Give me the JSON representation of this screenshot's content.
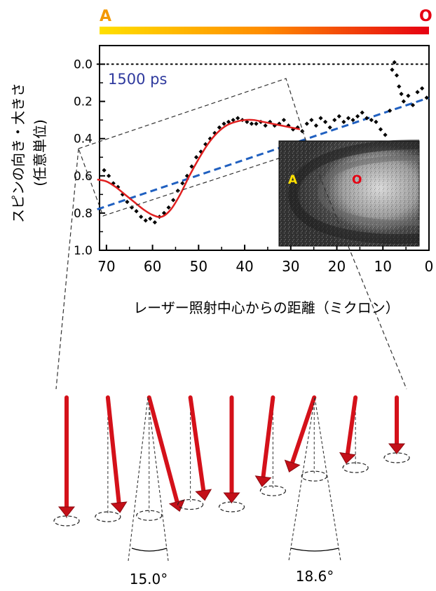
{
  "chart_data": {
    "type": "scatter",
    "title": "",
    "annotation": "1500 ps",
    "xlabel": "レーザー照射中心からの距離（ミクロン）",
    "ylabel": "スピンの向き・大きさ\n(任意単位)",
    "xlim": [
      71.5,
      0
    ],
    "ylim": [
      1.0,
      -0.1
    ],
    "x_ticks": [
      "70",
      "60",
      "50",
      "40",
      "30",
      "20",
      "10",
      "0"
    ],
    "y_ticks": [
      "0.0",
      "0.2",
      "0.4",
      "0.6",
      "0.8",
      "1.0"
    ],
    "gradient_bar": {
      "left_label": "A",
      "right_label": "O",
      "colors": [
        "#ffe000",
        "#ff8c00",
        "#e60012"
      ]
    },
    "inset": {
      "left_label": "A",
      "right_label": "O"
    },
    "series": [
      {
        "style": "points",
        "color": "#000000",
        "x": [
          70.5,
          69.5,
          68.5,
          67.5,
          66.5,
          65.5,
          64.5,
          63.5,
          62.5,
          61.5,
          60.5,
          59.5,
          58.5,
          57.5,
          56.5,
          55.5,
          54.5,
          53.5,
          52.5,
          51.5,
          50.5,
          49.5,
          48.5,
          47.5,
          46.5,
          45.5,
          44.5,
          43.5,
          42.5,
          41.5,
          40.5,
          39.5,
          38.5,
          37.5,
          36.5,
          35.5,
          34.5,
          33.5,
          32.5,
          31.5,
          30.5,
          29.5,
          28.5,
          27.5,
          26.5,
          25.5,
          24.5,
          23.5,
          22.5,
          21.5,
          20.5,
          19.5,
          18.5,
          17.5,
          16.5,
          15.5,
          14.5,
          13.5,
          12.5,
          11.5,
          10.5,
          9.5,
          8.5,
          8.0,
          7.5,
          7.0,
          6.5,
          6.0,
          5.5,
          4.5,
          3.5,
          2.5,
          1.5,
          0.5
        ],
        "y": [
          0.57,
          0.6,
          0.64,
          0.66,
          0.7,
          0.74,
          0.77,
          0.79,
          0.82,
          0.84,
          0.83,
          0.85,
          0.82,
          0.8,
          0.77,
          0.73,
          0.68,
          0.64,
          0.6,
          0.55,
          0.5,
          0.47,
          0.43,
          0.4,
          0.37,
          0.34,
          0.32,
          0.31,
          0.3,
          0.29,
          0.3,
          0.31,
          0.32,
          0.32,
          0.31,
          0.33,
          0.31,
          0.33,
          0.32,
          0.3,
          0.33,
          0.35,
          0.34,
          0.36,
          0.32,
          0.3,
          0.33,
          0.29,
          0.31,
          0.34,
          0.3,
          0.28,
          0.31,
          0.29,
          0.3,
          0.28,
          0.26,
          0.29,
          0.3,
          0.31,
          0.35,
          0.38,
          0.25,
          0.03,
          -0.01,
          0.06,
          0.12,
          0.16,
          0.2,
          0.17,
          0.22,
          0.15,
          0.13,
          0.18
        ]
      },
      {
        "style": "smooth-fit",
        "color": "#e02020",
        "x": [
          72,
          70,
          68,
          66,
          64,
          62,
          60,
          58,
          56,
          54,
          52,
          50,
          48,
          46,
          44,
          42,
          40,
          38,
          36,
          34,
          32,
          30,
          28
        ],
        "y": [
          0.62,
          0.63,
          0.66,
          0.7,
          0.74,
          0.78,
          0.81,
          0.82,
          0.78,
          0.7,
          0.6,
          0.51,
          0.43,
          0.37,
          0.33,
          0.31,
          0.3,
          0.3,
          0.31,
          0.32,
          0.33,
          0.34,
          0.35
        ]
      },
      {
        "style": "dashed-trend",
        "color": "#2060c0",
        "x": [
          72,
          0
        ],
        "y": [
          0.78,
          0.18
        ]
      },
      {
        "style": "dotted-zero",
        "color": "#000000",
        "x": [
          72,
          0
        ],
        "y": [
          0.0,
          0.0
        ]
      }
    ],
    "spin_arrows": {
      "count": 9,
      "tilts_deg": [
        0,
        -6,
        -15,
        -8,
        0,
        7,
        18.6,
        8,
        0
      ],
      "angle_labels": [
        "15.0°",
        "18.6°"
      ]
    }
  }
}
